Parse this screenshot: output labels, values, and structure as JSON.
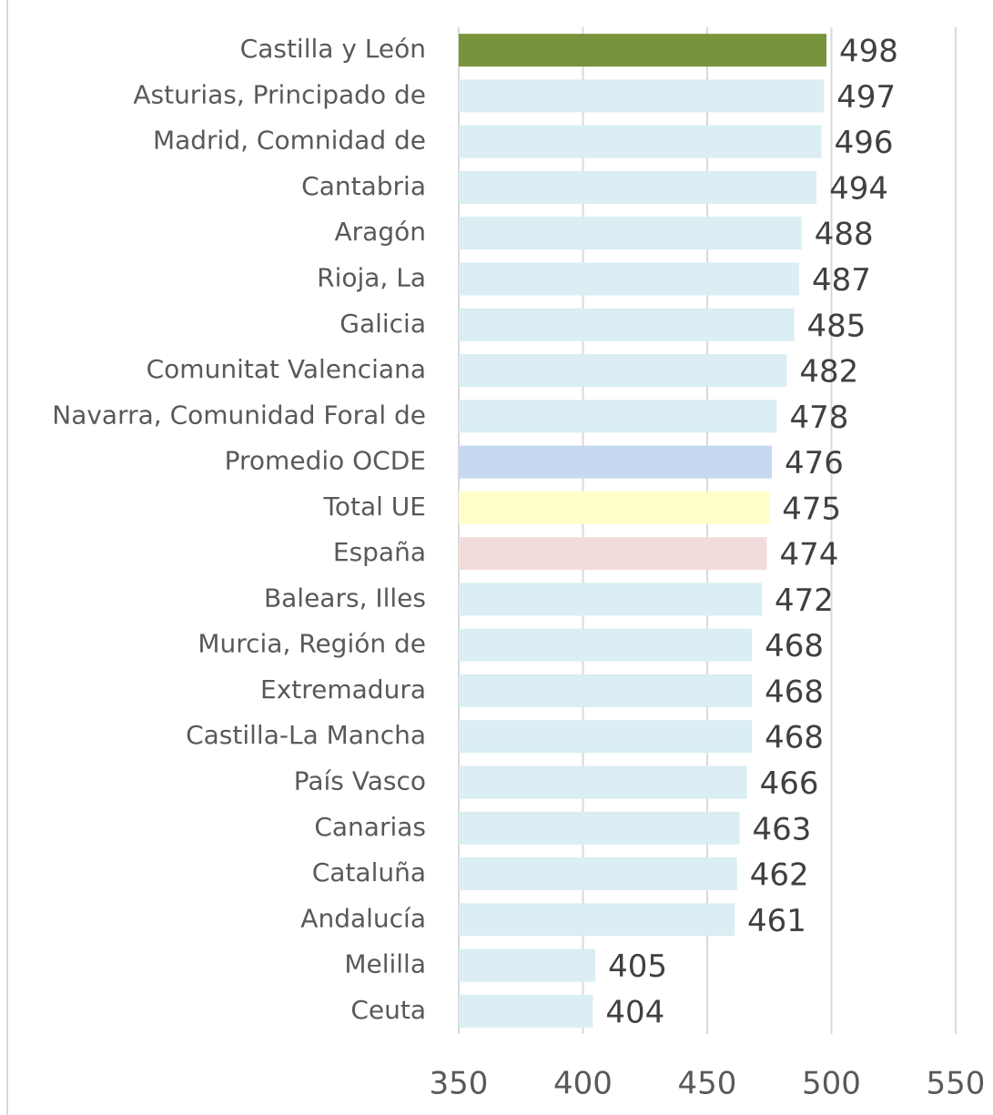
{
  "chart_data": {
    "type": "bar",
    "orientation": "horizontal",
    "categories": [
      "Castilla y León",
      "Asturias, Principado de",
      "Madrid, Comnidad de",
      "Cantabria",
      "Aragón",
      "Rioja, La",
      "Galicia",
      "Comunitat Valenciana",
      "Navarra, Comunidad Foral de",
      "Promedio OCDE",
      "Total UE",
      "España",
      "Balears, Illes",
      "Murcia, Región de",
      "Extremadura",
      "Castilla-La Mancha",
      "País Vasco",
      "Canarias",
      "Cataluña",
      "Andalucía",
      "Melilla",
      "Ceuta"
    ],
    "values": [
      498,
      497,
      496,
      494,
      488,
      487,
      485,
      482,
      478,
      476,
      475,
      474,
      472,
      468,
      468,
      468,
      466,
      463,
      462,
      461,
      405,
      404
    ],
    "colors": [
      "#77933c",
      "#daeef3",
      "#daeef3",
      "#daeef3",
      "#daeef3",
      "#daeef3",
      "#daeef3",
      "#daeef3",
      "#daeef3",
      "#c6d9f1",
      "#ffffcc",
      "#f2dcdb",
      "#daeef3",
      "#daeef3",
      "#daeef3",
      "#daeef3",
      "#daeef3",
      "#daeef3",
      "#daeef3",
      "#daeef3",
      "#daeef3",
      "#daeef3"
    ],
    "xlim": [
      350,
      550
    ],
    "xticks": [
      350,
      400,
      450,
      500,
      550
    ],
    "grid": true
  }
}
